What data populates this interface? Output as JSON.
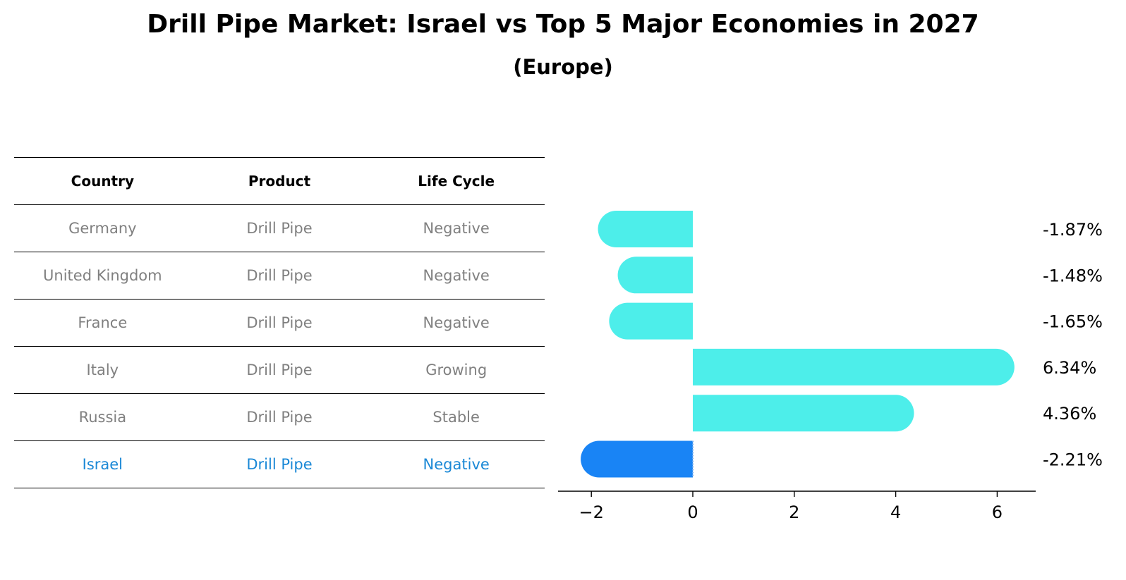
{
  "title": "Drill Pipe Market: Israel vs Top 5 Major Economies in 2027",
  "subtitle": "(Europe)",
  "table": {
    "headers": [
      "Country",
      "Product",
      "Life Cycle"
    ],
    "rows": [
      [
        "Germany",
        "Drill Pipe",
        "Negative"
      ],
      [
        "United Kingdom",
        "Drill Pipe",
        "Negative"
      ],
      [
        "France",
        "Drill Pipe",
        "Negative"
      ],
      [
        "Italy",
        "Drill Pipe",
        "Growing"
      ],
      [
        "Russia",
        "Drill Pipe",
        "Stable"
      ],
      [
        "Israel",
        "Drill Pipe",
        "Negative"
      ]
    ]
  },
  "colors": {
    "bar": "#4deeea",
    "highlight_bar": "#1984f5",
    "highlight_text": "#1a88d6",
    "row_text": "#808080"
  },
  "chart_data": {
    "type": "bar",
    "orientation": "horizontal",
    "categories": [
      "Germany",
      "United Kingdom",
      "France",
      "Italy",
      "Russia",
      "Israel"
    ],
    "values": [
      -1.87,
      -1.48,
      -1.65,
      6.34,
      4.36,
      -2.21
    ],
    "labels": [
      "-1.87%",
      "-1.48%",
      "-1.65%",
      "6.34%",
      "4.36%",
      "-2.21%"
    ],
    "highlight": "Israel",
    "xticks": [
      -2,
      0,
      2,
      4,
      6
    ],
    "xtick_labels": [
      "−2",
      "0",
      "2",
      "4",
      "6"
    ],
    "xlim": [
      -2.6,
      6.8
    ]
  }
}
